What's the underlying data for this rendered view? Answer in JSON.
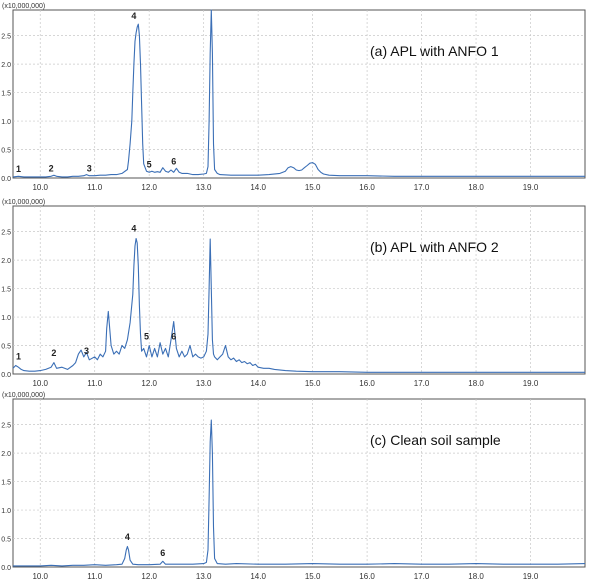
{
  "chart_data": [
    {
      "type": "line",
      "title": "(a) APL with ANFO 1",
      "y_unit": "(x10,000,000)",
      "xlim": [
        9.5,
        20.0
      ],
      "ylim": [
        0,
        2.95
      ],
      "x_ticks": [
        "10.0",
        "11.0",
        "12.0",
        "13.0",
        "14.0",
        "15.0",
        "16.0",
        "17.0",
        "18.0",
        "19.0"
      ],
      "y_ticks": [
        "0.0",
        "0.5",
        "1.0",
        "1.5",
        "2.0",
        "2.5"
      ],
      "grid": true,
      "line_color": "#3b6fb6",
      "series": [
        {
          "x": [
            9.5,
            9.6,
            9.7,
            9.8,
            9.9,
            10.0,
            10.1,
            10.2,
            10.25,
            10.3,
            10.4,
            10.5,
            10.6,
            10.7,
            10.8,
            10.85,
            10.9,
            11.0,
            11.1,
            11.2,
            11.3,
            11.4,
            11.5,
            11.6,
            11.62,
            11.65,
            11.68,
            11.7,
            11.72,
            11.74,
            11.76,
            11.78,
            11.8,
            11.82,
            11.84,
            11.86,
            11.88,
            11.9,
            11.95,
            12.0,
            12.05,
            12.1,
            12.15,
            12.2,
            12.25,
            12.3,
            12.35,
            12.4,
            12.45,
            12.5,
            12.55,
            12.6,
            12.7,
            12.8,
            12.9,
            13.0,
            13.05,
            13.08,
            13.1,
            13.12,
            13.14,
            13.16,
            13.18,
            13.2,
            13.25,
            13.3,
            13.5,
            13.8,
            14.0,
            14.2,
            14.4,
            14.5,
            14.55,
            14.6,
            14.65,
            14.7,
            14.75,
            14.8,
            14.85,
            14.9,
            14.95,
            15.0,
            15.05,
            15.1,
            15.15,
            15.2,
            15.3,
            15.5,
            16.0,
            16.5,
            17.0,
            17.5,
            18.0,
            18.5,
            19.0,
            19.5,
            20.0
          ],
          "y": [
            0.02,
            0.03,
            0.02,
            0.02,
            0.02,
            0.02,
            0.02,
            0.03,
            0.05,
            0.03,
            0.02,
            0.02,
            0.03,
            0.03,
            0.04,
            0.06,
            0.04,
            0.04,
            0.05,
            0.05,
            0.06,
            0.06,
            0.08,
            0.15,
            0.3,
            0.6,
            1.0,
            1.5,
            2.0,
            2.4,
            2.55,
            2.65,
            2.7,
            2.5,
            2.0,
            1.3,
            0.6,
            0.25,
            0.12,
            0.1,
            0.12,
            0.1,
            0.11,
            0.1,
            0.18,
            0.12,
            0.1,
            0.14,
            0.1,
            0.17,
            0.1,
            0.08,
            0.08,
            0.06,
            0.06,
            0.07,
            0.08,
            0.2,
            1.0,
            2.2,
            2.95,
            2.2,
            0.6,
            0.15,
            0.08,
            0.06,
            0.05,
            0.05,
            0.05,
            0.06,
            0.08,
            0.12,
            0.18,
            0.2,
            0.18,
            0.14,
            0.13,
            0.14,
            0.18,
            0.22,
            0.26,
            0.27,
            0.24,
            0.15,
            0.1,
            0.07,
            0.05,
            0.04,
            0.04,
            0.03,
            0.03,
            0.03,
            0.03,
            0.03,
            0.03,
            0.03,
            0.03
          ]
        }
      ],
      "peak_labels": [
        {
          "text": "1",
          "x": 9.6,
          "y": 0.05
        },
        {
          "text": "2",
          "x": 10.2,
          "y": 0.06
        },
        {
          "text": "3",
          "x": 10.9,
          "y": 0.06
        },
        {
          "text": "4",
          "x": 11.72,
          "y": 2.74
        },
        {
          "text": "5",
          "x": 12.0,
          "y": 0.13
        },
        {
          "text": "6",
          "x": 12.45,
          "y": 0.18
        }
      ]
    },
    {
      "type": "line",
      "title": "(b) APL with ANFO 2",
      "y_unit": "(x10,000,000)",
      "xlim": [
        9.5,
        20.0
      ],
      "ylim": [
        0,
        2.95
      ],
      "x_ticks": [
        "10.0",
        "11.0",
        "12.0",
        "13.0",
        "14.0",
        "15.0",
        "16.0",
        "17.0",
        "18.0",
        "19.0"
      ],
      "y_ticks": [
        "0.0",
        "0.5",
        "1.0",
        "1.5",
        "2.0",
        "2.5"
      ],
      "grid": true,
      "line_color": "#3b6fb6",
      "series": [
        {
          "x": [
            9.5,
            9.55,
            9.6,
            9.65,
            9.7,
            9.8,
            9.9,
            10.0,
            10.1,
            10.2,
            10.25,
            10.3,
            10.4,
            10.5,
            10.6,
            10.65,
            10.7,
            10.75,
            10.8,
            10.85,
            10.9,
            11.0,
            11.05,
            11.1,
            11.15,
            11.2,
            11.22,
            11.25,
            11.3,
            11.35,
            11.4,
            11.45,
            11.5,
            11.55,
            11.6,
            11.65,
            11.7,
            11.72,
            11.74,
            11.76,
            11.78,
            11.8,
            11.82,
            11.84,
            11.86,
            11.9,
            11.95,
            12.0,
            12.05,
            12.1,
            12.15,
            12.2,
            12.25,
            12.3,
            12.35,
            12.4,
            12.45,
            12.5,
            12.55,
            12.6,
            12.65,
            12.7,
            12.75,
            12.8,
            12.85,
            12.9,
            12.95,
            13.0,
            13.05,
            13.08,
            13.1,
            13.12,
            13.14,
            13.16,
            13.18,
            13.2,
            13.25,
            13.3,
            13.35,
            13.4,
            13.45,
            13.5,
            13.55,
            13.6,
            13.65,
            13.7,
            13.75,
            13.8,
            13.85,
            13.9,
            13.95,
            14.0,
            14.1,
            14.2,
            14.3,
            14.5,
            14.7,
            15.0,
            15.5,
            16.0,
            16.5,
            17.0,
            17.5,
            18.0,
            18.5,
            19.0,
            19.5,
            20.0
          ],
          "y": [
            0.1,
            0.15,
            0.12,
            0.08,
            0.06,
            0.05,
            0.05,
            0.06,
            0.08,
            0.12,
            0.2,
            0.1,
            0.12,
            0.08,
            0.15,
            0.2,
            0.35,
            0.42,
            0.3,
            0.38,
            0.25,
            0.3,
            0.25,
            0.35,
            0.3,
            0.4,
            0.8,
            1.1,
            0.5,
            0.35,
            0.4,
            0.35,
            0.5,
            0.45,
            0.6,
            0.9,
            1.4,
            1.9,
            2.25,
            2.38,
            2.3,
            1.9,
            1.2,
            0.7,
            0.4,
            0.45,
            0.3,
            0.5,
            0.3,
            0.45,
            0.3,
            0.55,
            0.35,
            0.45,
            0.3,
            0.6,
            0.92,
            0.45,
            0.3,
            0.4,
            0.3,
            0.35,
            0.5,
            0.3,
            0.35,
            0.3,
            0.28,
            0.3,
            0.4,
            0.7,
            1.5,
            2.37,
            1.5,
            0.6,
            0.35,
            0.3,
            0.25,
            0.3,
            0.35,
            0.5,
            0.3,
            0.25,
            0.28,
            0.22,
            0.25,
            0.2,
            0.22,
            0.18,
            0.2,
            0.15,
            0.17,
            0.12,
            0.1,
            0.1,
            0.08,
            0.06,
            0.05,
            0.04,
            0.04,
            0.03,
            0.03,
            0.03,
            0.03,
            0.03,
            0.03,
            0.03,
            0.03,
            0.03
          ]
        }
      ],
      "peak_labels": [
        {
          "text": "1",
          "x": 9.6,
          "y": 0.2
        },
        {
          "text": "2",
          "x": 10.25,
          "y": 0.26
        },
        {
          "text": "3",
          "x": 10.85,
          "y": 0.3
        },
        {
          "text": "4",
          "x": 11.72,
          "y": 2.45
        },
        {
          "text": "5",
          "x": 11.95,
          "y": 0.55
        },
        {
          "text": "6",
          "x": 12.45,
          "y": 0.55
        }
      ]
    },
    {
      "type": "line",
      "title": "(c) Clean soil sample",
      "y_unit": "(x10,000,000)",
      "xlim": [
        9.5,
        20.0
      ],
      "ylim": [
        0,
        2.95
      ],
      "x_ticks": [
        "10.0",
        "11.0",
        "12.0",
        "13.0",
        "14.0",
        "15.0",
        "16.0",
        "17.0",
        "18.0",
        "19.0"
      ],
      "y_ticks": [
        "0.0",
        "0.5",
        "1.0",
        "1.5",
        "2.0",
        "2.5"
      ],
      "grid": true,
      "line_color": "#3b6fb6",
      "series": [
        {
          "x": [
            9.5,
            9.8,
            10.0,
            10.2,
            10.4,
            10.6,
            10.8,
            11.0,
            11.2,
            11.4,
            11.5,
            11.55,
            11.58,
            11.6,
            11.62,
            11.65,
            11.7,
            11.8,
            12.0,
            12.2,
            12.25,
            12.3,
            12.5,
            12.8,
            13.0,
            13.05,
            13.08,
            13.1,
            13.12,
            13.14,
            13.16,
            13.18,
            13.2,
            13.25,
            13.4,
            13.6,
            14.0,
            14.5,
            15.0,
            15.5,
            16.0,
            16.5,
            17.0,
            17.5,
            18.0,
            18.5,
            19.0,
            19.5,
            20.0
          ],
          "y": [
            0.02,
            0.02,
            0.02,
            0.03,
            0.02,
            0.03,
            0.03,
            0.04,
            0.03,
            0.04,
            0.05,
            0.15,
            0.3,
            0.36,
            0.3,
            0.12,
            0.05,
            0.04,
            0.04,
            0.05,
            0.1,
            0.05,
            0.05,
            0.05,
            0.06,
            0.08,
            0.3,
            1.2,
            2.2,
            2.58,
            2.0,
            0.7,
            0.15,
            0.06,
            0.05,
            0.06,
            0.05,
            0.05,
            0.06,
            0.05,
            0.05,
            0.06,
            0.05,
            0.05,
            0.06,
            0.05,
            0.05,
            0.05,
            0.06
          ]
        }
      ],
      "peak_labels": [
        {
          "text": "4",
          "x": 11.6,
          "y": 0.42
        },
        {
          "text": "6",
          "x": 12.25,
          "y": 0.14
        }
      ]
    }
  ]
}
